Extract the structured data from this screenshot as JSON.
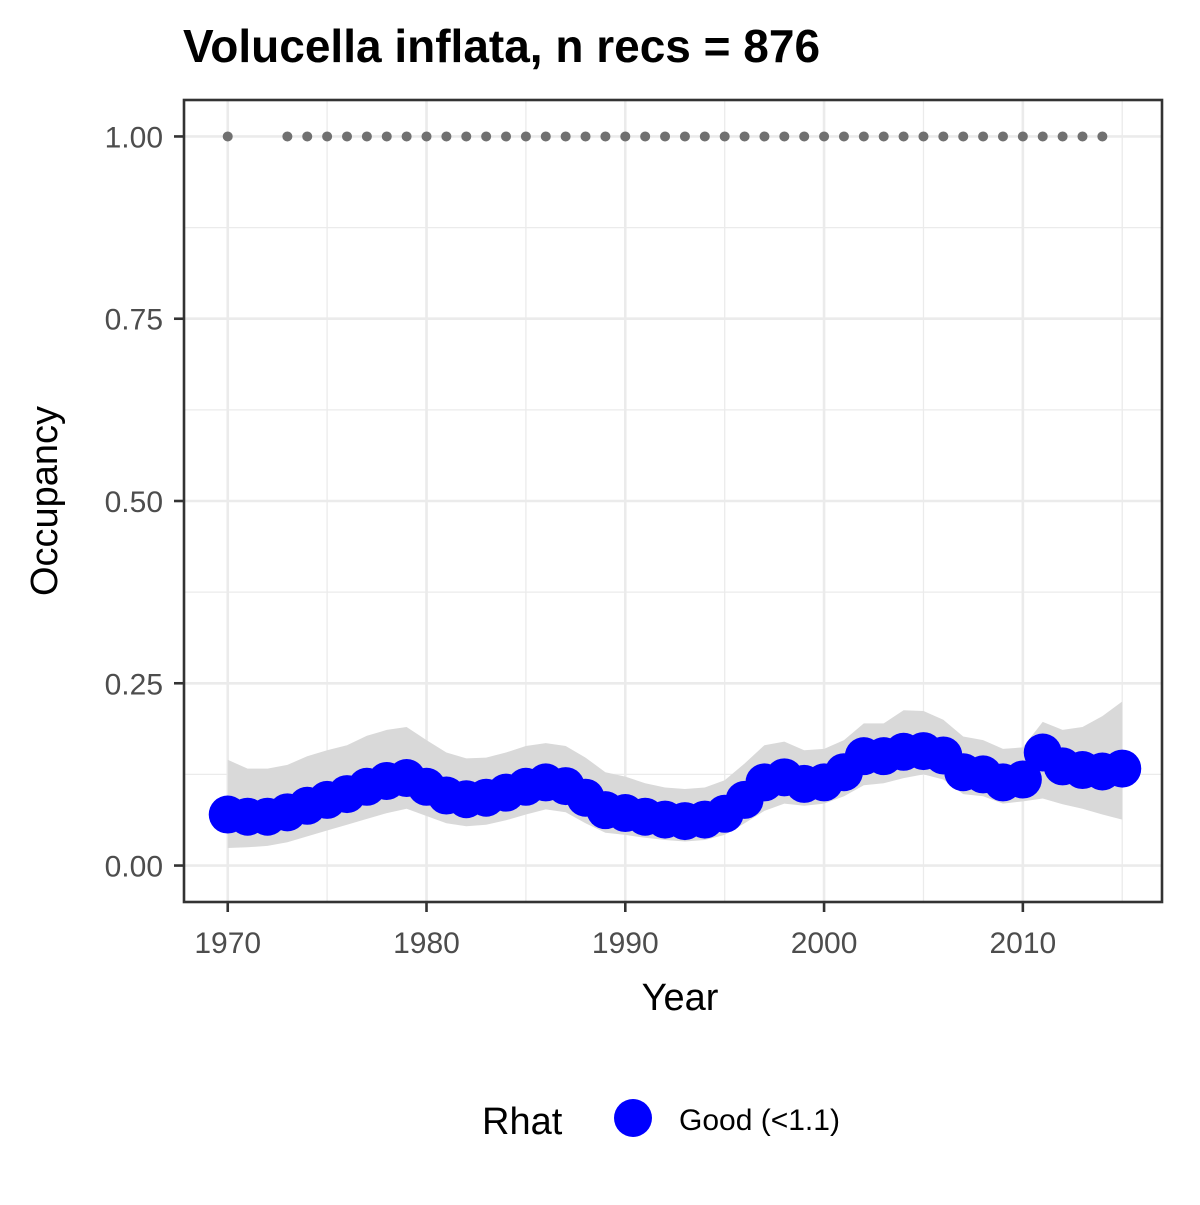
{
  "chart_data": {
    "type": "line",
    "title": "Volucella inflata, n recs = 876",
    "xlabel": "Year",
    "ylabel": "Occupancy",
    "xlim": [
      1967.8,
      1017.0
    ],
    "ylim": [
      -0.05,
      1.05
    ],
    "x_ticks": [
      1970,
      1980,
      1990,
      2000,
      2010
    ],
    "x_tick_labels": [
      "1970",
      "1980",
      "1990",
      "2000",
      "2010"
    ],
    "y_ticks": [
      0.0,
      0.25,
      0.5,
      0.75,
      1.0
    ],
    "y_tick_labels": [
      "0.00",
      "0.25",
      "0.50",
      "0.75",
      "1.00"
    ],
    "grid": true,
    "years": [
      1970,
      1971,
      1972,
      1973,
      1974,
      1975,
      1976,
      1977,
      1978,
      1979,
      1980,
      1981,
      1982,
      1983,
      1984,
      1985,
      1986,
      1987,
      1988,
      1989,
      1990,
      1991,
      1992,
      1993,
      1994,
      1995,
      1996,
      1997,
      1998,
      1999,
      2000,
      2001,
      2002,
      2003,
      2004,
      2005,
      2006,
      2007,
      2008,
      2009,
      2010,
      2011,
      2012,
      2013,
      2014,
      2015
    ],
    "occupancy": [
      0.07,
      0.067,
      0.067,
      0.073,
      0.082,
      0.09,
      0.098,
      0.108,
      0.116,
      0.12,
      0.108,
      0.096,
      0.091,
      0.093,
      0.1,
      0.108,
      0.114,
      0.109,
      0.093,
      0.076,
      0.072,
      0.067,
      0.063,
      0.061,
      0.063,
      0.071,
      0.09,
      0.114,
      0.121,
      0.112,
      0.114,
      0.128,
      0.15,
      0.15,
      0.156,
      0.157,
      0.151,
      0.128,
      0.125,
      0.114,
      0.118,
      0.155,
      0.136,
      0.131,
      0.129,
      0.133
    ],
    "lower": [
      0.024,
      0.025,
      0.027,
      0.032,
      0.04,
      0.048,
      0.056,
      0.064,
      0.072,
      0.078,
      0.068,
      0.058,
      0.054,
      0.056,
      0.062,
      0.07,
      0.077,
      0.073,
      0.058,
      0.045,
      0.042,
      0.038,
      0.035,
      0.033,
      0.035,
      0.042,
      0.058,
      0.075,
      0.085,
      0.082,
      0.085,
      0.095,
      0.11,
      0.113,
      0.12,
      0.125,
      0.118,
      0.098,
      0.095,
      0.085,
      0.088,
      0.092,
      0.084,
      0.078,
      0.07,
      0.063
    ],
    "upper": [
      0.145,
      0.133,
      0.133,
      0.138,
      0.15,
      0.158,
      0.165,
      0.178,
      0.186,
      0.19,
      0.172,
      0.155,
      0.147,
      0.148,
      0.155,
      0.164,
      0.168,
      0.164,
      0.148,
      0.128,
      0.122,
      0.113,
      0.107,
      0.105,
      0.107,
      0.117,
      0.14,
      0.165,
      0.17,
      0.158,
      0.16,
      0.172,
      0.195,
      0.195,
      0.213,
      0.212,
      0.2,
      0.177,
      0.172,
      0.16,
      0.162,
      0.197,
      0.186,
      0.19,
      0.205,
      0.225
    ],
    "record_years": [
      1970,
      1973,
      1974,
      1975,
      1976,
      1977,
      1978,
      1979,
      1980,
      1981,
      1982,
      1983,
      1984,
      1985,
      1986,
      1987,
      1988,
      1989,
      1990,
      1991,
      1992,
      1993,
      1994,
      1995,
      1996,
      1997,
      1998,
      1999,
      2000,
      2001,
      2002,
      2003,
      2004,
      2005,
      2006,
      2007,
      2008,
      2009,
      2010,
      2011,
      2012,
      2013,
      2014
    ],
    "record_value": 1.0,
    "colors": {
      "points": "#0000ff",
      "ribbon": "#d9d9d9",
      "records": "#707070"
    },
    "legend": {
      "title": "Rhat",
      "entries": [
        {
          "label": "Good (<1.1)",
          "color": "#0000ff"
        }
      ],
      "placement": "bottom"
    }
  }
}
